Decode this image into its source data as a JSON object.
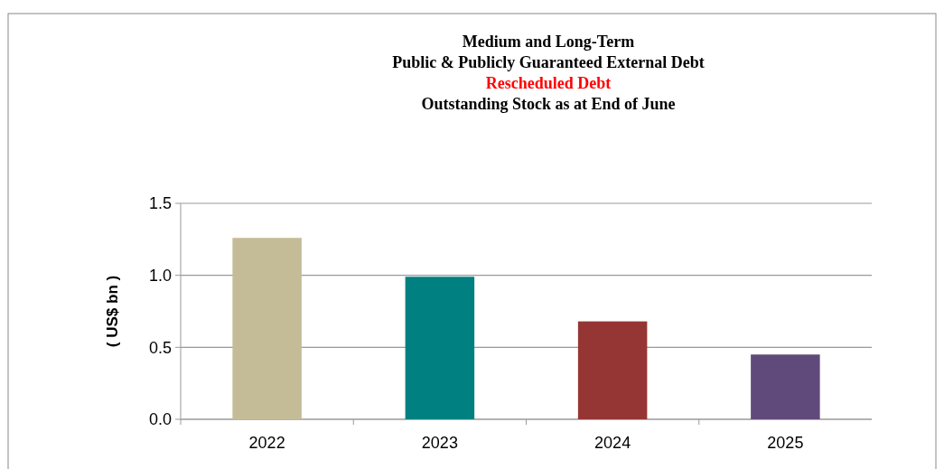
{
  "chart_data": {
    "type": "bar",
    "title": "Medium and Long-Term\nPublic & Publicly Guaranteed External Debt",
    "subtitle": "Rescheduled Debt",
    "annotations": [
      "Outstanding Stock as at End of June"
    ],
    "ylabel": "( US$ bn )",
    "categories": [
      "2022",
      "2023",
      "2024",
      "2025"
    ],
    "values": [
      1.26,
      0.99,
      0.68,
      0.45
    ],
    "colors": [
      "#c4bc96",
      "#008080",
      "#963634",
      "#604a7b"
    ],
    "ylim": [
      0,
      1.5
    ],
    "yticks": [
      {
        "value": 0,
        "label": "0.0"
      },
      {
        "value": 0.5,
        "label": "0.5"
      },
      {
        "value": 1,
        "label": "1.0"
      },
      {
        "value": 1.5,
        "label": "1.5"
      }
    ],
    "grid": "y"
  }
}
